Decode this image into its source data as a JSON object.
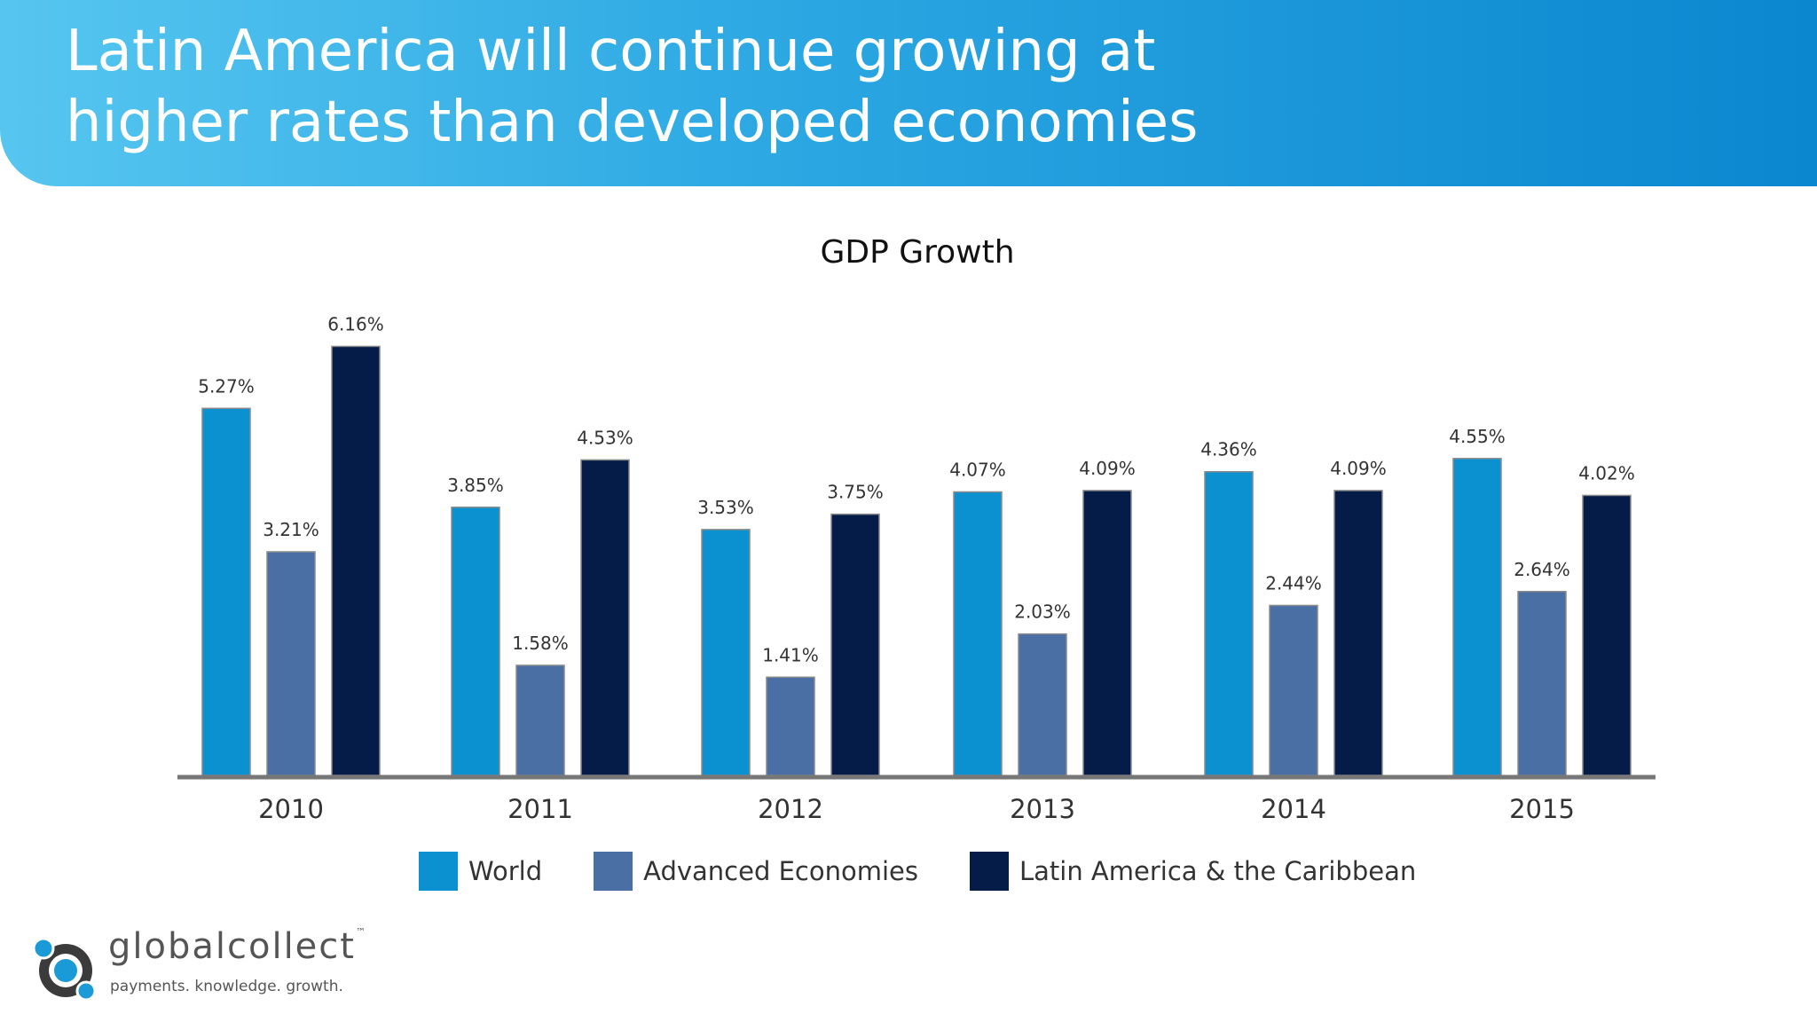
{
  "header": {
    "title_line1": "Latin America will continue growing at",
    "title_line2": "higher rates than developed economies"
  },
  "chart_data": {
    "type": "bar",
    "title": "GDP Growth",
    "xlabel": "",
    "ylabel": "",
    "ylim": [
      0,
      7.0
    ],
    "grid": false,
    "legend_position": "bottom",
    "categories": [
      "2010",
      "2011",
      "2012",
      "2013",
      "2014",
      "2015"
    ],
    "series": [
      {
        "name": "World",
        "color": "#0b91d0",
        "values": [
          5.27,
          3.85,
          3.53,
          4.07,
          4.36,
          4.55
        ],
        "labels": [
          "5.27%",
          "3.85%",
          "3.53%",
          "4.07%",
          "4.36%",
          "4.55%"
        ]
      },
      {
        "name": "Advanced Economies",
        "color": "#4a6fa5",
        "values": [
          3.21,
          1.58,
          1.41,
          2.03,
          2.44,
          2.64
        ],
        "labels": [
          "3.21%",
          "1.58%",
          "1.41%",
          "2.03%",
          "2.44%",
          "2.64%"
        ]
      },
      {
        "name": "Latin America & the Caribbean",
        "color": "#061c48",
        "values": [
          6.16,
          4.53,
          3.75,
          4.09,
          4.09,
          4.02
        ],
        "labels": [
          "6.16%",
          "4.53%",
          "3.75%",
          "4.09%",
          "4.09%",
          "4.02%"
        ]
      }
    ]
  },
  "logo": {
    "name": "globalcollect",
    "trademark": "™",
    "tagline": "payments. knowledge. growth."
  }
}
